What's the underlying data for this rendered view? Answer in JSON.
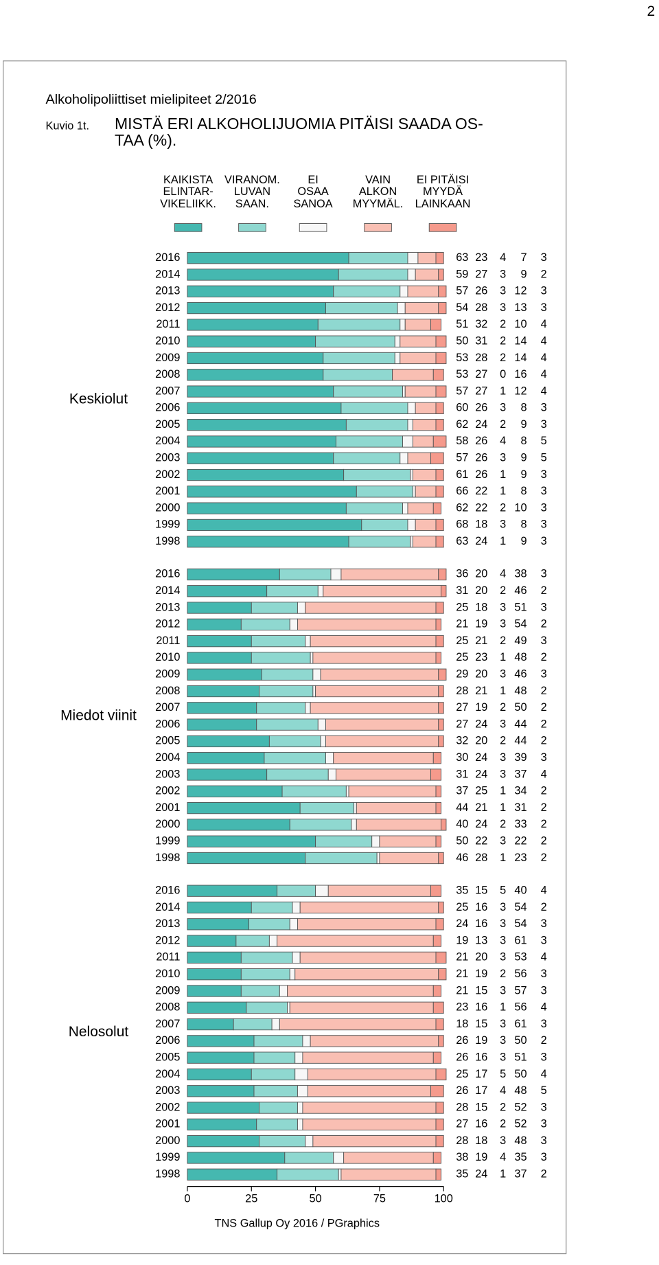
{
  "page_number": "2",
  "header": "Alkoholipoliittiset mielipiteet 2/2016",
  "figure_label": "Kuvio 1t.",
  "source": "TNS Gallup Oy 2016 / PGraphics",
  "chart_data": {
    "type": "stacked-bar",
    "title": "MISTÄ ERI ALKOHOLIJUOMIA PITÄISI SAADA OS-\nTAA (%).",
    "series": [
      {
        "name": "KAIKISTA\nELINTAR-\nVIKELIIKK.",
        "color": "#45b8b0"
      },
      {
        "name": "VIRANOM.\nLUVAN\nSAAN.",
        "color": "#8fd8d0"
      },
      {
        "name": "EI\nOSAA\nSANOA",
        "color": "#f7f7f7"
      },
      {
        "name": "VAIN\nALKON\nMYYMÄL.",
        "color": "#f9bfb3"
      },
      {
        "name": "EI PITÄISI\nMYYDÄ\nLAINKAAN",
        "color": "#f59a8c"
      }
    ],
    "xlim": [
      0,
      100
    ],
    "xticks": [
      0,
      25,
      50,
      75,
      100
    ],
    "groups": [
      {
        "name": "Keskiolut",
        "categories": [
          "2016",
          "2014",
          "2013",
          "2012",
          "2011",
          "2010",
          "2009",
          "2008",
          "2007",
          "2006",
          "2005",
          "2004",
          "2003",
          "2002",
          "2001",
          "2000",
          "1999",
          "1998"
        ],
        "rows": [
          [
            63,
            23,
            4,
            7,
            3
          ],
          [
            59,
            27,
            3,
            9,
            2
          ],
          [
            57,
            26,
            3,
            12,
            3
          ],
          [
            54,
            28,
            3,
            13,
            3
          ],
          [
            51,
            32,
            2,
            10,
            4
          ],
          [
            50,
            31,
            2,
            14,
            4
          ],
          [
            53,
            28,
            2,
            14,
            4
          ],
          [
            53,
            27,
            0,
            16,
            4
          ],
          [
            57,
            27,
            1,
            12,
            4
          ],
          [
            60,
            26,
            3,
            8,
            3
          ],
          [
            62,
            24,
            2,
            9,
            3
          ],
          [
            58,
            26,
            4,
            8,
            5
          ],
          [
            57,
            26,
            3,
            9,
            5
          ],
          [
            61,
            26,
            1,
            9,
            3
          ],
          [
            66,
            22,
            1,
            8,
            3
          ],
          [
            62,
            22,
            2,
            10,
            3
          ],
          [
            68,
            18,
            3,
            8,
            3
          ],
          [
            63,
            24,
            1,
            9,
            3
          ]
        ]
      },
      {
        "name": "Miedot viinit",
        "categories": [
          "2016",
          "2014",
          "2013",
          "2012",
          "2011",
          "2010",
          "2009",
          "2008",
          "2007",
          "2006",
          "2005",
          "2004",
          "2003",
          "2002",
          "2001",
          "2000",
          "1999",
          "1998"
        ],
        "rows": [
          [
            36,
            20,
            4,
            38,
            3
          ],
          [
            31,
            20,
            2,
            46,
            2
          ],
          [
            25,
            18,
            3,
            51,
            3
          ],
          [
            21,
            19,
            3,
            54,
            2
          ],
          [
            25,
            21,
            2,
            49,
            3
          ],
          [
            25,
            23,
            1,
            48,
            2
          ],
          [
            29,
            20,
            3,
            46,
            3
          ],
          [
            28,
            21,
            1,
            48,
            2
          ],
          [
            27,
            19,
            2,
            50,
            2
          ],
          [
            27,
            24,
            3,
            44,
            2
          ],
          [
            32,
            20,
            2,
            44,
            2
          ],
          [
            30,
            24,
            3,
            39,
            3
          ],
          [
            31,
            24,
            3,
            37,
            4
          ],
          [
            37,
            25,
            1,
            34,
            2
          ],
          [
            44,
            21,
            1,
            31,
            2
          ],
          [
            40,
            24,
            2,
            33,
            2
          ],
          [
            50,
            22,
            3,
            22,
            2
          ],
          [
            46,
            28,
            1,
            23,
            2
          ]
        ]
      },
      {
        "name": "Nelosolut",
        "categories": [
          "2016",
          "2014",
          "2013",
          "2012",
          "2011",
          "2010",
          "2009",
          "2008",
          "2007",
          "2006",
          "2005",
          "2004",
          "2003",
          "2002",
          "2001",
          "2000",
          "1999",
          "1998"
        ],
        "rows": [
          [
            35,
            15,
            5,
            40,
            4
          ],
          [
            25,
            16,
            3,
            54,
            2
          ],
          [
            24,
            16,
            3,
            54,
            3
          ],
          [
            19,
            13,
            3,
            61,
            3
          ],
          [
            21,
            20,
            3,
            53,
            4
          ],
          [
            21,
            19,
            2,
            56,
            3
          ],
          [
            21,
            15,
            3,
            57,
            3
          ],
          [
            23,
            16,
            1,
            56,
            4
          ],
          [
            18,
            15,
            3,
            61,
            3
          ],
          [
            26,
            19,
            3,
            50,
            2
          ],
          [
            26,
            16,
            3,
            51,
            3
          ],
          [
            25,
            17,
            5,
            50,
            4
          ],
          [
            26,
            17,
            4,
            48,
            5
          ],
          [
            28,
            15,
            2,
            52,
            3
          ],
          [
            27,
            16,
            2,
            52,
            3
          ],
          [
            28,
            18,
            3,
            48,
            3
          ],
          [
            38,
            19,
            4,
            35,
            3
          ],
          [
            35,
            24,
            1,
            37,
            2
          ]
        ]
      }
    ]
  }
}
